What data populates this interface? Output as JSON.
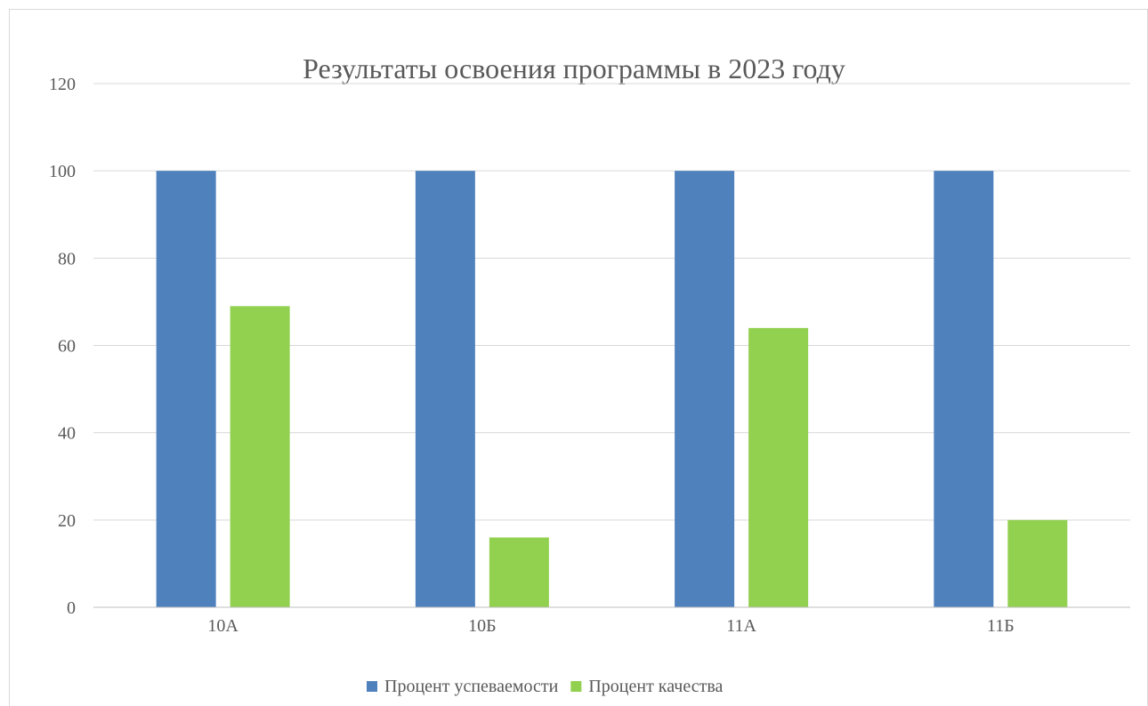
{
  "chart_data": {
    "type": "bar",
    "title": "Результаты освоения программы в 2023 году",
    "categories": [
      "10А",
      "10Б",
      "11А",
      "11Б"
    ],
    "series": [
      {
        "name": "Процент успеваемости",
        "values": [
          100,
          100,
          100,
          100
        ],
        "color": "#4f81bd"
      },
      {
        "name": "Процент качества",
        "values": [
          69,
          16,
          64,
          20
        ],
        "color": "#92d050"
      }
    ],
    "ylim": [
      0,
      120
    ],
    "yticks": [
      0,
      20,
      40,
      60,
      80,
      100,
      120
    ],
    "grid": true,
    "legend_position": "bottom"
  }
}
